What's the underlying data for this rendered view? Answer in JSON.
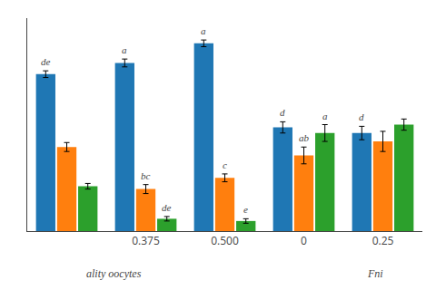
{
  "chart_data": {
    "type": "bar",
    "categories": [
      null,
      "0.375",
      "0.500",
      "0",
      "0.25"
    ],
    "series": [
      {
        "values": [
          2.8,
          3.0,
          3.35,
          1.85,
          1.75
        ],
        "errors": [
          0.06,
          0.07,
          0.06,
          0.1,
          0.12
        ],
        "annotations": [
          "de",
          "a",
          "a",
          "d",
          "d"
        ]
      },
      {
        "values": [
          1.5,
          0.75,
          0.95,
          1.35,
          1.6
        ],
        "errors": [
          0.08,
          0.08,
          0.07,
          0.15,
          0.18
        ],
        "annotations": [
          null,
          "bc",
          "c",
          "ab",
          null
        ]
      },
      {
        "values": [
          0.8,
          0.22,
          0.18,
          1.75,
          1.9
        ],
        "errors": [
          0.05,
          0.04,
          0.04,
          0.15,
          0.1
        ],
        "annotations": [
          null,
          "de",
          "e",
          "a",
          null
        ]
      }
    ],
    "annotations": [
      "ality oocytes",
      "Fni"
    ],
    "ylim": [
      0,
      3.8
    ],
    "tick_labels": "x",
    "grid": false
  }
}
